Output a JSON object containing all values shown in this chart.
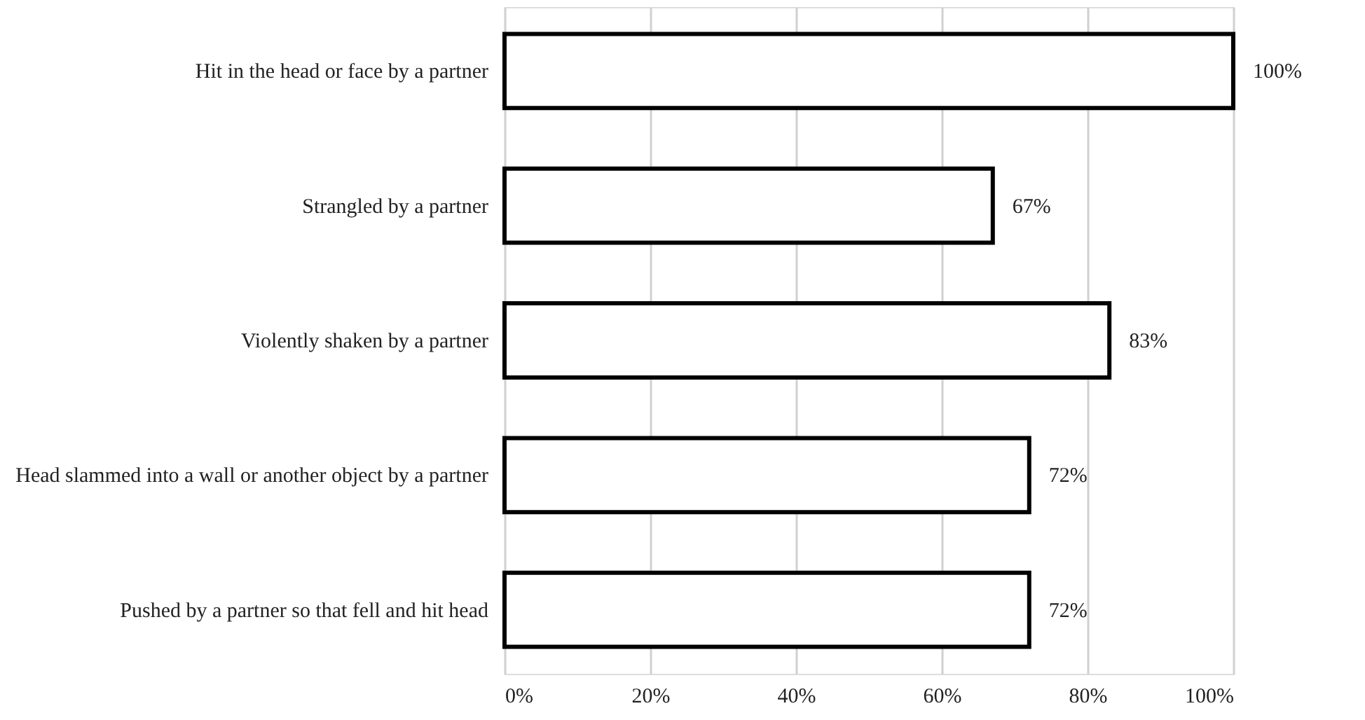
{
  "chart_data": {
    "type": "bar",
    "orientation": "horizontal",
    "categories": [
      "Hit in the head or face by a partner",
      "Strangled by a partner",
      "Violently shaken by a partner",
      "Head slammed into a wall or another object by a partner",
      "Pushed by a partner so that fell and hit head"
    ],
    "values": [
      100,
      67,
      83,
      72,
      72
    ],
    "value_labels": [
      "100%",
      "67%",
      "83%",
      "72%",
      "72%"
    ],
    "color": "#ffffff",
    "xlim": [
      0,
      100
    ],
    "xticks": [
      {
        "value": 0,
        "label": "0%"
      },
      {
        "value": 20,
        "label": "20%"
      },
      {
        "value": 40,
        "label": "40%"
      },
      {
        "value": 60,
        "label": "60%"
      },
      {
        "value": 80,
        "label": "80%"
      },
      {
        "value": 100,
        "label": "100%"
      }
    ],
    "grid": "x"
  }
}
